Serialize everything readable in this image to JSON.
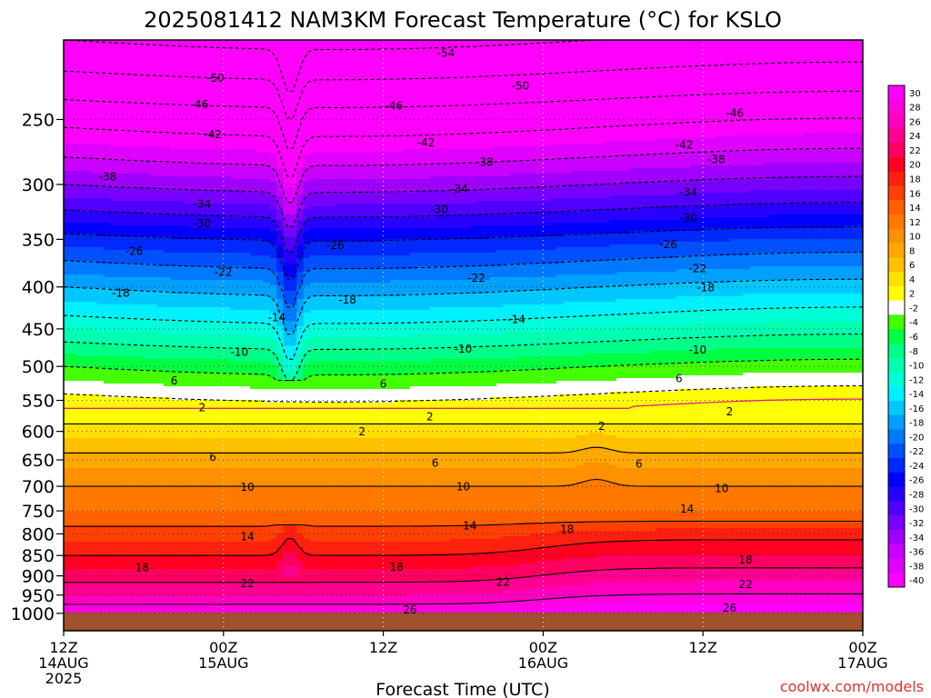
{
  "chart_data": {
    "type": "heatmap",
    "title": "2025081412 NAM3KM Forecast Temperature (°C) for KSLO",
    "xlabel": "Forecast Time (UTC)",
    "ylabel": "",
    "credit": "coolwx.com/models",
    "x_ticks": [
      {
        "hour": 0,
        "line1": "12Z",
        "line2": "14AUG",
        "line3": "2025"
      },
      {
        "hour": 12,
        "line1": "00Z",
        "line2": "15AUG",
        "line3": ""
      },
      {
        "hour": 24,
        "line1": "12Z",
        "line2": "",
        "line3": ""
      },
      {
        "hour": 36,
        "line1": "00Z",
        "line2": "16AUG",
        "line3": ""
      },
      {
        "hour": 48,
        "line1": "12Z",
        "line2": "",
        "line3": ""
      },
      {
        "hour": 60,
        "line1": "00Z",
        "line2": "17AUG",
        "line3": ""
      }
    ],
    "xlim_hours": [
      0,
      60
    ],
    "y_axis": "pressure (hPa), inverted, log-scaled",
    "ylim": [
      1050,
      200
    ],
    "y_ticks": [
      250,
      300,
      350,
      400,
      450,
      500,
      550,
      600,
      650,
      700,
      750,
      800,
      850,
      900,
      950,
      1000
    ],
    "grid": true,
    "colorbar": {
      "position": "right",
      "levels": [
        30,
        28,
        26,
        24,
        22,
        20,
        18,
        16,
        14,
        12,
        10,
        8,
        6,
        4,
        2,
        -2,
        -4,
        -6,
        -8,
        -10,
        -12,
        -14,
        -16,
        -18,
        -20,
        -22,
        -24,
        -26,
        -28,
        -30,
        -32,
        -34,
        -36,
        -38,
        -40
      ],
      "colors": [
        "#ff00ff",
        "#ff00e0",
        "#ff00c0",
        "#ff0090",
        "#ff0060",
        "#ff0020",
        "#ff2010",
        "#ff4000",
        "#ff6000",
        "#ff7800",
        "#ff9000",
        "#ffa800",
        "#ffc000",
        "#ffe000",
        "#ffff00",
        "#ffffff",
        "#44ff00",
        "#00ff40",
        "#00ff88",
        "#00ffb0",
        "#00ffd8",
        "#00f0ff",
        "#00c8ff",
        "#00a0ff",
        "#0078ff",
        "#0050ff",
        "#0028ff",
        "#0000ff",
        "#2800ff",
        "#5000ff",
        "#7800ff",
        "#a000ff",
        "#c800ff",
        "#e000ff",
        "#ff00ff"
      ]
    },
    "temperature_profile_at_start": [
      {
        "p": 1000,
        "t": 28
      },
      {
        "p": 950,
        "t": 24
      },
      {
        "p": 900,
        "t": 21
      },
      {
        "p": 850,
        "t": 18
      },
      {
        "p": 800,
        "t": 15
      },
      {
        "p": 750,
        "t": 12
      },
      {
        "p": 700,
        "t": 10
      },
      {
        "p": 650,
        "t": 7
      },
      {
        "p": 600,
        "t": 3
      },
      {
        "p": 550,
        "t": -1
      },
      {
        "p": 500,
        "t": -6
      },
      {
        "p": 450,
        "t": -12
      },
      {
        "p": 400,
        "t": -18
      },
      {
        "p": 350,
        "t": -25
      },
      {
        "p": 300,
        "t": -34
      },
      {
        "p": 250,
        "t": -43
      },
      {
        "p": 200,
        "t": -54
      }
    ],
    "contour_labels": [
      {
        "text": "-54",
        "hour": 28.7,
        "p": 207
      },
      {
        "text": "-50",
        "hour": 11.4,
        "p": 222
      },
      {
        "text": "-50",
        "hour": 34.3,
        "p": 227
      },
      {
        "text": "-46",
        "hour": 10.2,
        "p": 239
      },
      {
        "text": "-46",
        "hour": 24.8,
        "p": 240
      },
      {
        "text": "-46",
        "hour": 50.4,
        "p": 245
      },
      {
        "text": "-42",
        "hour": 11.2,
        "p": 260
      },
      {
        "text": "-42",
        "hour": 27.2,
        "p": 266
      },
      {
        "text": "-42",
        "hour": 46.6,
        "p": 268
      },
      {
        "text": "-38",
        "hour": 3.3,
        "p": 293
      },
      {
        "text": "-38",
        "hour": 31.6,
        "p": 281
      },
      {
        "text": "-38",
        "hour": 49.0,
        "p": 279
      },
      {
        "text": "-34",
        "hour": 10.4,
        "p": 316
      },
      {
        "text": "-34",
        "hour": 29.7,
        "p": 303
      },
      {
        "text": "-34",
        "hour": 46.9,
        "p": 306
      },
      {
        "text": "-30",
        "hour": 10.4,
        "p": 334
      },
      {
        "text": "-30",
        "hour": 28.2,
        "p": 321
      },
      {
        "text": "-30",
        "hour": 46.9,
        "p": 329
      },
      {
        "text": "-26",
        "hour": 5.3,
        "p": 361
      },
      {
        "text": "-26",
        "hour": 20.4,
        "p": 355
      },
      {
        "text": "-26",
        "hour": 45.4,
        "p": 354
      },
      {
        "text": "-22",
        "hour": 12.0,
        "p": 383
      },
      {
        "text": "-22",
        "hour": 31.0,
        "p": 389
      },
      {
        "text": "-22",
        "hour": 47.6,
        "p": 379
      },
      {
        "text": "-18",
        "hour": 4.3,
        "p": 406
      },
      {
        "text": "-18",
        "hour": 21.3,
        "p": 414
      },
      {
        "text": "-18",
        "hour": 48.2,
        "p": 400
      },
      {
        "text": "-14",
        "hour": 16.0,
        "p": 435
      },
      {
        "text": "-14",
        "hour": 34.0,
        "p": 437
      },
      {
        "text": "-10",
        "hour": 13.2,
        "p": 479
      },
      {
        "text": "-10",
        "hour": 30.0,
        "p": 475
      },
      {
        "text": "-10",
        "hour": 47.6,
        "p": 476
      },
      {
        "text": "6",
        "hour": 8.3,
        "p": 519
      },
      {
        "text": "6",
        "hour": 24.0,
        "p": 524
      },
      {
        "text": "6",
        "hour": 46.2,
        "p": 516
      },
      {
        "text": "2",
        "hour": 10.4,
        "p": 560
      },
      {
        "text": "2",
        "hour": 27.5,
        "p": 574
      },
      {
        "text": "2",
        "hour": 50.0,
        "p": 566
      },
      {
        "text": "2",
        "hour": 22.4,
        "p": 599
      },
      {
        "text": "2",
        "hour": 40.4,
        "p": 590
      },
      {
        "text": "6",
        "hour": 11.2,
        "p": 643
      },
      {
        "text": "6",
        "hour": 27.9,
        "p": 654
      },
      {
        "text": "6",
        "hour": 43.2,
        "p": 656
      },
      {
        "text": "10",
        "hour": 13.8,
        "p": 700
      },
      {
        "text": "10",
        "hour": 30.0,
        "p": 699
      },
      {
        "text": "10",
        "hour": 49.4,
        "p": 703
      },
      {
        "text": "14",
        "hour": 13.8,
        "p": 804
      },
      {
        "text": "14",
        "hour": 30.5,
        "p": 780
      },
      {
        "text": "14",
        "hour": 46.8,
        "p": 744
      },
      {
        "text": "18",
        "hour": 5.9,
        "p": 877
      },
      {
        "text": "18",
        "hour": 25.0,
        "p": 876
      },
      {
        "text": "18",
        "hour": 37.8,
        "p": 788
      },
      {
        "text": "18",
        "hour": 51.2,
        "p": 858
      },
      {
        "text": "22",
        "hour": 13.8,
        "p": 917
      },
      {
        "text": "22",
        "hour": 33.0,
        "p": 914
      },
      {
        "text": "22",
        "hour": 51.2,
        "p": 920
      },
      {
        "text": "26",
        "hour": 26.0,
        "p": 988
      },
      {
        "text": "26",
        "hour": 50.0,
        "p": 983
      }
    ]
  }
}
